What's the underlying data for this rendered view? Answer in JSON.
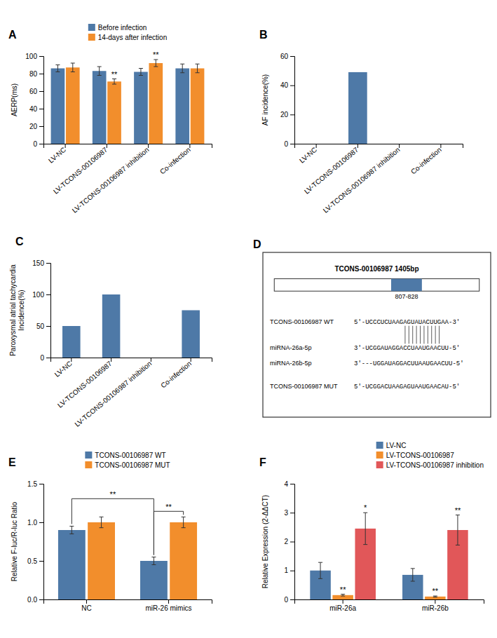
{
  "chart_data": [
    {
      "type": "bar",
      "title": "A",
      "categories": [
        "LV-NC",
        "LV-TCONS-00106987",
        "LV-TCONS-00106987 inhibition",
        "Co-infection"
      ],
      "series": [
        {
          "name": "Before infection",
          "values": [
            86,
            83,
            82,
            86
          ],
          "errors": [
            4,
            5,
            4,
            5
          ]
        },
        {
          "name": "14-days after infection",
          "values": [
            87,
            71,
            92,
            86
          ],
          "errors": [
            5,
            3,
            4,
            5
          ],
          "annotations": [
            null,
            "**",
            "**",
            null
          ]
        }
      ],
      "ylabel": "AERP(ms)",
      "ylim": [
        0,
        100
      ],
      "yticks": [
        0,
        20,
        40,
        60,
        80,
        100
      ],
      "legend": "top"
    },
    {
      "type": "bar",
      "title": "B",
      "categories": [
        "LV-NC",
        "LV-TCONS-00106987",
        "LV-TCONS-00106987 inhibition",
        "Co-infection"
      ],
      "values": [
        0,
        49,
        0,
        0
      ],
      "ylabel": "AF incidence(%)",
      "ylim": [
        0,
        60
      ],
      "yticks": [
        0,
        20,
        40,
        60
      ]
    },
    {
      "type": "bar",
      "title": "C",
      "categories": [
        "LV-NC",
        "LV-TCONS-00106987",
        "LV-TCONS-00106987 inhibition",
        "Co-infection"
      ],
      "values": [
        50,
        100,
        0,
        75
      ],
      "ylabel": "Paroxysmal atrial tachycardia\nIncidence(%)",
      "ylim": [
        0,
        150
      ],
      "yticks": [
        0,
        50,
        100,
        150
      ]
    },
    {
      "type": "diagram",
      "title": "D",
      "annotations": [
        "TCONS-00106987 1405bp",
        "807-828",
        "TCONS-00106987 WT",
        "5'-UCCCUCUAAGAGUAUACUUGAA-3'",
        "miRNA-26a-5p",
        "3'-UCGGAUAGGACCUAAUGAACUU-5'",
        "miRNA-26b-5p",
        "3'---UGGAUAGGACUUAAUGAACUU-5'",
        "TCONS-00106987 MUT",
        "5'-UCGGACUAAGAGUAAUGAACAU-5'"
      ]
    },
    {
      "type": "bar",
      "title": "E",
      "categories": [
        "NC",
        "miR-26 mimics"
      ],
      "series": [
        {
          "name": "TCONS-00106987 WT",
          "values": [
            0.9,
            0.5
          ],
          "errors": [
            0.05,
            0.05
          ]
        },
        {
          "name": "TCONS-00106987 MUT",
          "values": [
            1.0,
            1.0
          ],
          "errors": [
            0.07,
            0.07
          ]
        }
      ],
      "annotations": [
        {
          "text": "**",
          "from": [
            0,
            0
          ],
          "to": [
            0,
            1
          ]
        },
        {
          "text": "**",
          "from": [
            0,
            1
          ],
          "to": [
            1,
            1
          ]
        }
      ],
      "ylabel": "Relative F-luc/R-luc Ratio",
      "ylim": [
        0,
        1.5
      ],
      "yticks": [
        {
          "value": 0,
          "label": "0.0"
        },
        0.5,
        {
          "value": 1.0,
          "label": "1.0"
        },
        1.5
      ],
      "legend": "top"
    },
    {
      "type": "bar",
      "title": "F",
      "categories": [
        "miR-26a",
        "miR-26b"
      ],
      "series": [
        {
          "name": "LV-NC",
          "values": [
            1.0,
            0.85
          ],
          "errors": [
            0.28,
            0.22
          ]
        },
        {
          "name": "LV-TCONS-00106987",
          "values": [
            0.15,
            0.1
          ],
          "errors": [
            0.03,
            0.02
          ],
          "annotations": [
            "**",
            "**"
          ]
        },
        {
          "name": "LV-TCONS-00106987 inhibition",
          "values": [
            2.45,
            2.4
          ],
          "errors": [
            0.55,
            0.52
          ],
          "annotations": [
            "*",
            "**"
          ]
        }
      ],
      "ylabel": "Relative Expression (2-ΔΔCT)",
      "ylim": [
        0,
        4
      ],
      "yticks": [
        0,
        1,
        2,
        3,
        4
      ],
      "legend": "top-right"
    }
  ]
}
